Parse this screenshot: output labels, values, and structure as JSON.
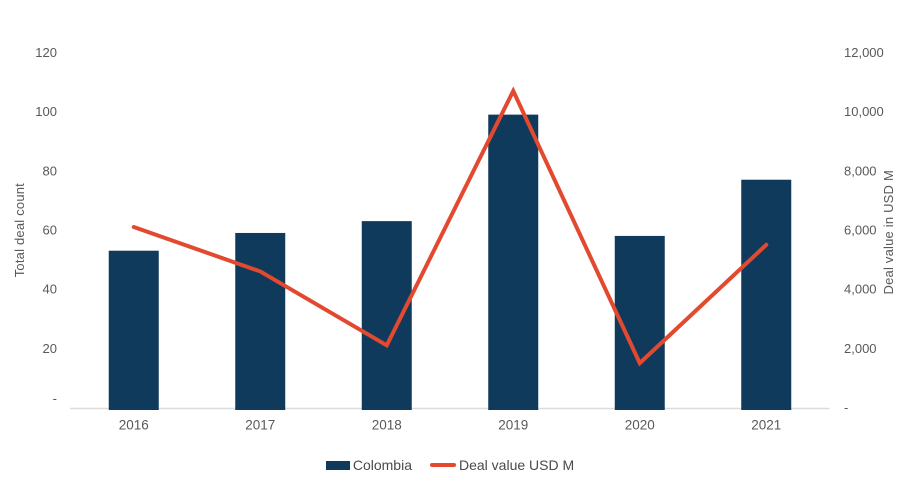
{
  "chart_data": {
    "type": "combo-bar-line",
    "title": "",
    "categories": [
      "2016",
      "2017",
      "2018",
      "2019",
      "2020",
      "2021"
    ],
    "series": [
      {
        "name": "Colombia",
        "type": "bar",
        "axis": "left",
        "color": "#0F3A5C",
        "values": [
          53,
          59,
          63,
          99,
          58,
          77
        ]
      },
      {
        "name": "Deal value USD M",
        "type": "line",
        "axis": "right",
        "color": "#E2492F",
        "values": [
          6100,
          4600,
          2100,
          10700,
          1500,
          5500
        ]
      }
    ],
    "left_axis": {
      "title": "Total deal count",
      "min": 0,
      "max": 120,
      "tick_values": [
        0,
        20,
        40,
        60,
        80,
        100,
        120
      ],
      "tick_labels": [
        "-",
        "20",
        "40",
        "60",
        "80",
        "100",
        "120"
      ]
    },
    "right_axis": {
      "title": "Deal value in USD M",
      "min": 0,
      "max": 12000,
      "tick_values": [
        0,
        2000,
        4000,
        6000,
        8000,
        10000,
        12000
      ],
      "tick_labels": [
        "-",
        "2,000",
        "4,000",
        "6,000",
        "8,000",
        "10,000",
        "12,000"
      ]
    },
    "legend": {
      "position": "bottom",
      "items": [
        "Colombia",
        "Deal value USD M"
      ]
    },
    "grid": false,
    "colors": {
      "tick_text": "#595959",
      "legend_text": "#4a4a4a",
      "axis_line": "#DCDCDC",
      "background": "#FFFFFF"
    }
  }
}
